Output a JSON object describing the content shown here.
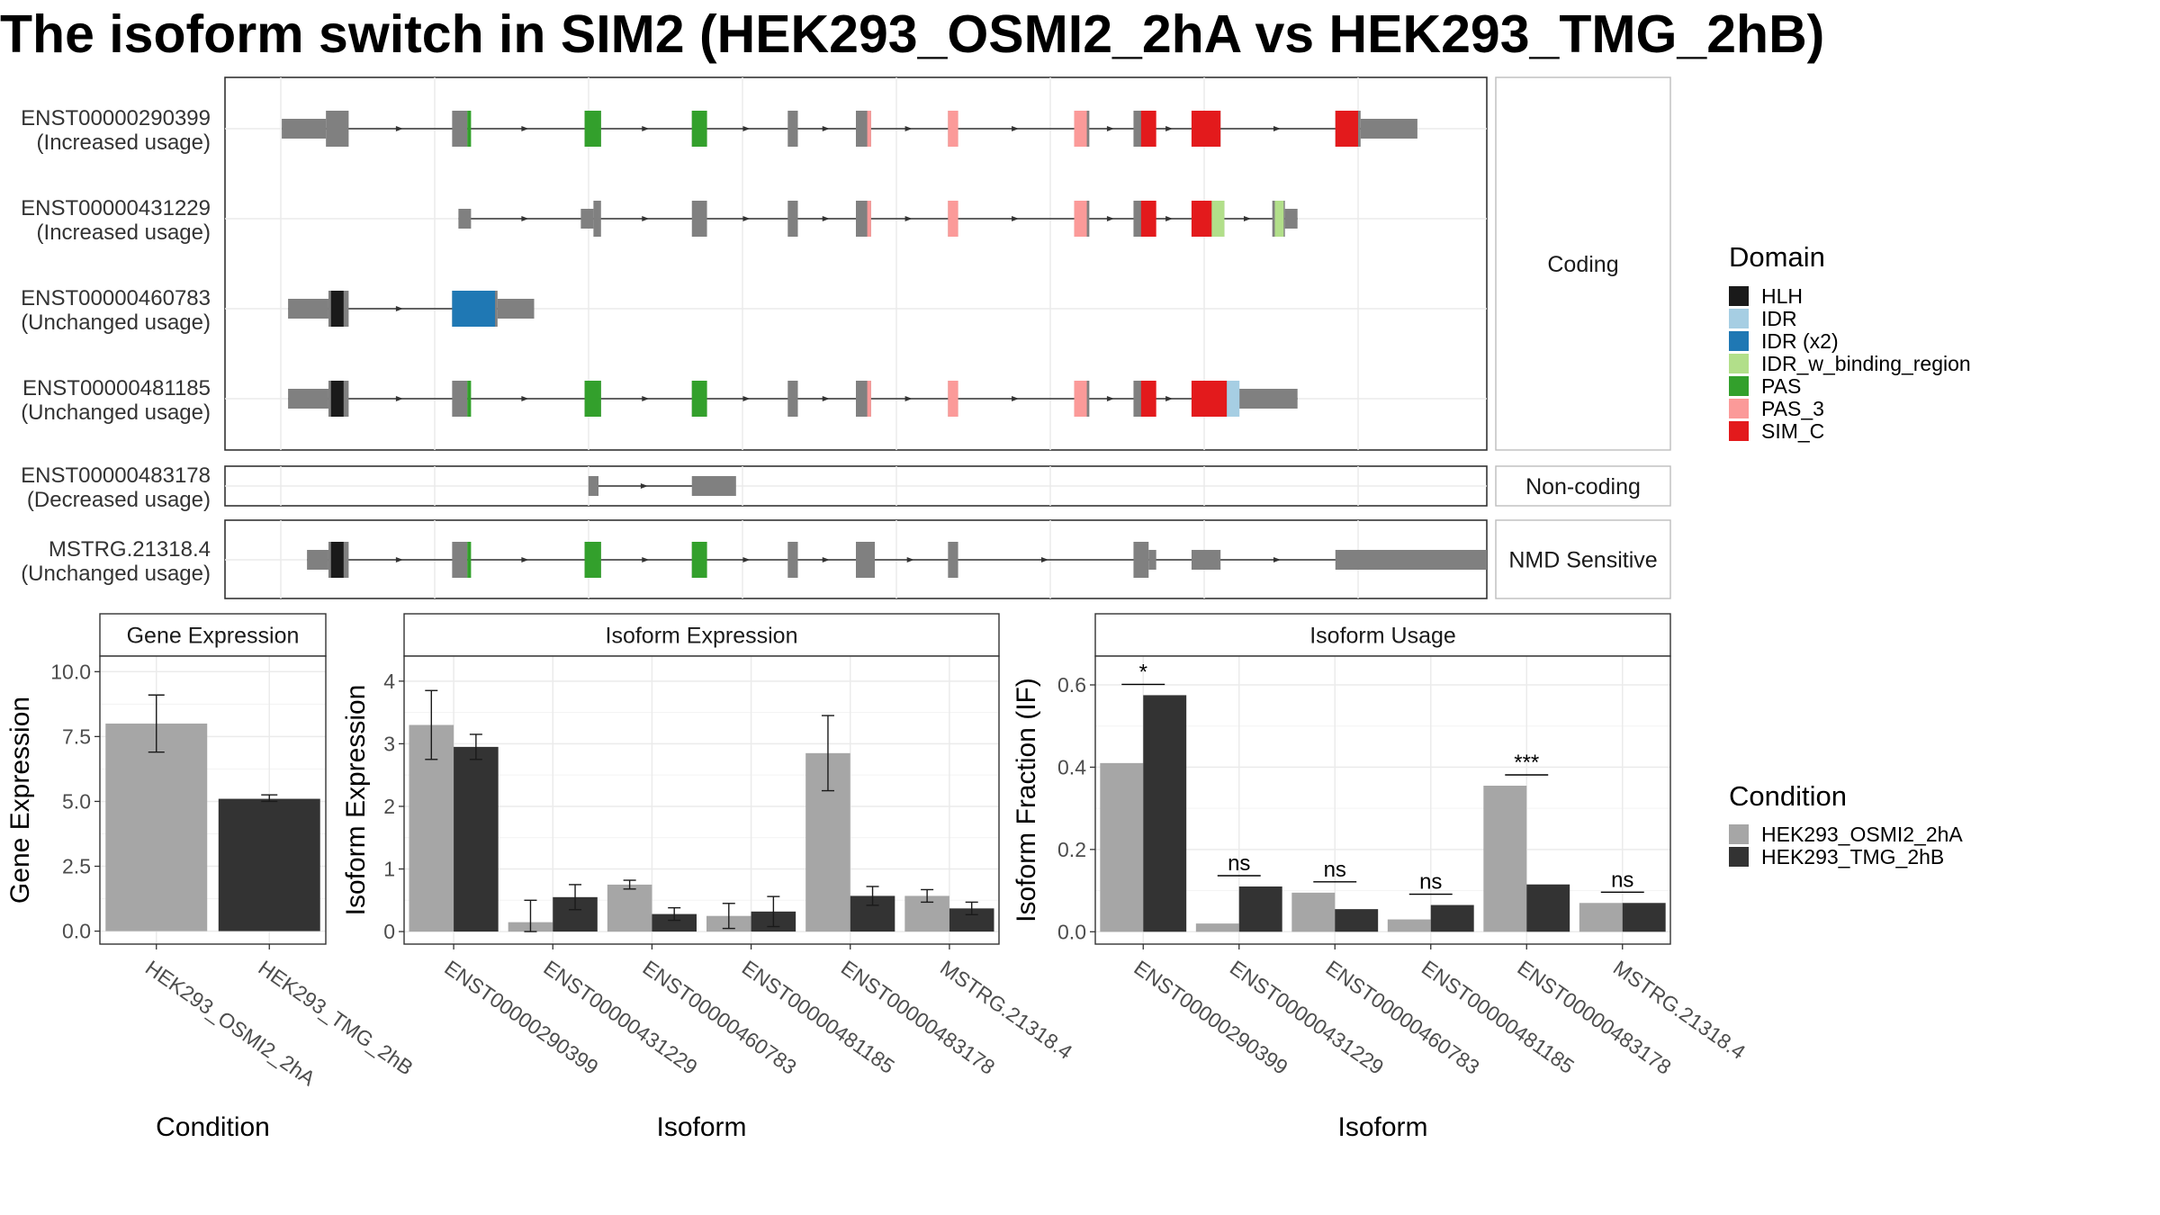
{
  "title": "The isoform switch in SIM2 (HEK293_OSMI2_2hA vs HEK293_TMG_2hB)",
  "colors": {
    "intron": "#333333",
    "exon": "#808080",
    "cond_a": "#a6a6a6",
    "cond_b": "#333333",
    "grid": "#ebebeb",
    "panel_border": "#333333",
    "strip_bg": "#ffffff"
  },
  "domains": [
    {
      "name": "HLH",
      "color": "#1a1a1a"
    },
    {
      "name": "IDR",
      "color": "#a6cee3"
    },
    {
      "name": "IDR (x2)",
      "color": "#1f78b4"
    },
    {
      "name": "IDR_w_binding_region",
      "color": "#b2df8a"
    },
    {
      "name": "PAS",
      "color": "#33a02c"
    },
    {
      "name": "PAS_3",
      "color": "#fb9a99"
    },
    {
      "name": "SIM_C",
      "color": "#e31a1c"
    }
  ],
  "legend": {
    "domain_title": "Domain",
    "condition_title": "Condition",
    "conditions": [
      "HEK293_OSMI2_2hA",
      "HEK293_TMG_2hB"
    ]
  },
  "structure": {
    "coord_range": [
      0,
      100
    ],
    "groups": [
      {
        "label": "Coding",
        "rows": [
          0,
          1,
          2,
          3
        ]
      },
      {
        "label": "Non-coding",
        "rows": [
          4
        ]
      },
      {
        "label": "NMD Sensitive",
        "rows": [
          5
        ]
      }
    ],
    "isoforms": [
      {
        "id": "ENST00000290399",
        "usage": "(Increased usage)",
        "span": [
          4.5,
          90.5
        ],
        "exons": [
          [
            4.5,
            8,
            "utr"
          ],
          [
            8,
            9.8,
            "cds"
          ],
          [
            18,
            19.2,
            "cds"
          ],
          [
            28.5,
            29.8,
            "cds"
          ],
          [
            37,
            38.2,
            "cds"
          ],
          [
            44.6,
            45.4,
            "cds"
          ],
          [
            50,
            51.2,
            "cds"
          ],
          [
            57.3,
            58.1,
            "cds"
          ],
          [
            67.3,
            68.5,
            "cds"
          ],
          [
            72,
            73.2,
            "cds"
          ],
          [
            76.6,
            78.9,
            "cds"
          ],
          [
            88,
            90,
            "cds"
          ],
          [
            90,
            94.5,
            "utr"
          ]
        ],
        "domains": [
          [
            19.2,
            19.5,
            "PAS"
          ],
          [
            28.5,
            29.8,
            "PAS"
          ],
          [
            37,
            38.2,
            "PAS"
          ],
          [
            50.9,
            51.2,
            "PAS_3"
          ],
          [
            57.3,
            58.1,
            "PAS_3"
          ],
          [
            67.3,
            68.3,
            "PAS_3"
          ],
          [
            72.6,
            73.8,
            "SIM_C"
          ],
          [
            76.6,
            78.9,
            "SIM_C"
          ],
          [
            88,
            89.8,
            "SIM_C"
          ]
        ]
      },
      {
        "id": "ENST00000431229",
        "usage": "(Increased usage)",
        "span": [
          18.5,
          85
        ],
        "exons": [
          [
            18.5,
            19.5,
            "utr"
          ],
          [
            28.2,
            29.2,
            "utr"
          ],
          [
            29.2,
            29.8,
            "cds"
          ],
          [
            37,
            38.2,
            "cds"
          ],
          [
            44.6,
            45.4,
            "cds"
          ],
          [
            50,
            51.2,
            "cds"
          ],
          [
            57.3,
            58.1,
            "cds"
          ],
          [
            67.3,
            68.5,
            "cds"
          ],
          [
            72,
            73.2,
            "cds"
          ],
          [
            76.6,
            78.2,
            "cds"
          ],
          [
            78.2,
            79.2,
            "cds"
          ],
          [
            83,
            84,
            "cds"
          ],
          [
            84,
            85,
            "utr"
          ]
        ],
        "domains": [
          [
            50.9,
            51.2,
            "PAS_3"
          ],
          [
            57.3,
            58.1,
            "PAS_3"
          ],
          [
            67.3,
            68.3,
            "PAS_3"
          ],
          [
            72.6,
            73.8,
            "SIM_C"
          ],
          [
            76.6,
            78.2,
            "SIM_C"
          ],
          [
            78.2,
            79.2,
            "IDR_w_binding_region"
          ],
          [
            83.2,
            83.9,
            "IDR_w_binding_region"
          ]
        ]
      },
      {
        "id": "ENST00000460783",
        "usage": "(Unchanged usage)",
        "span": [
          5,
          24.5
        ],
        "exons": [
          [
            5,
            8.2,
            "utr"
          ],
          [
            8.2,
            9.8,
            "cds"
          ],
          [
            18,
            21.6,
            "cds"
          ],
          [
            21.6,
            24.5,
            "utr"
          ]
        ],
        "domains": [
          [
            8.4,
            9.4,
            "HLH"
          ],
          [
            18,
            21.4,
            "IDR (x2)"
          ]
        ]
      },
      {
        "id": "ENST00000481185",
        "usage": "(Unchanged usage)",
        "span": [
          5,
          85
        ],
        "exons": [
          [
            5,
            8.2,
            "utr"
          ],
          [
            8.2,
            9.8,
            "cds"
          ],
          [
            18,
            19.2,
            "cds"
          ],
          [
            28.5,
            29.8,
            "cds"
          ],
          [
            37,
            38.2,
            "cds"
          ],
          [
            44.6,
            45.4,
            "cds"
          ],
          [
            50,
            51.2,
            "cds"
          ],
          [
            57.3,
            58.1,
            "cds"
          ],
          [
            67.3,
            68.5,
            "cds"
          ],
          [
            72,
            73.2,
            "cds"
          ],
          [
            76.6,
            80.2,
            "cds"
          ],
          [
            80.2,
            85,
            "utr"
          ]
        ],
        "domains": [
          [
            8.4,
            9.4,
            "HLH"
          ],
          [
            19.2,
            19.5,
            "PAS"
          ],
          [
            28.5,
            29.8,
            "PAS"
          ],
          [
            37,
            38.2,
            "PAS"
          ],
          [
            50.9,
            51.2,
            "PAS_3"
          ],
          [
            57.3,
            58.1,
            "PAS_3"
          ],
          [
            67.3,
            68.3,
            "PAS_3"
          ],
          [
            72.6,
            73.8,
            "SIM_C"
          ],
          [
            76.6,
            79.4,
            "SIM_C"
          ],
          [
            79.4,
            80.4,
            "IDR"
          ]
        ]
      },
      {
        "id": "ENST00000483178",
        "usage": "(Decreased usage)",
        "span": [
          29,
          40
        ],
        "exons": [
          [
            28.8,
            29.6,
            "utr"
          ],
          [
            37,
            40.5,
            "utr"
          ]
        ],
        "domains": []
      },
      {
        "id": "MSTRG.21318.4",
        "usage": "(Unchanged usage)",
        "span": [
          6.5,
          100
        ],
        "exons": [
          [
            6.5,
            8.2,
            "utr"
          ],
          [
            8.2,
            9.8,
            "cds"
          ],
          [
            18,
            19.2,
            "cds"
          ],
          [
            28.5,
            29.8,
            "cds"
          ],
          [
            37,
            38.2,
            "cds"
          ],
          [
            44.6,
            45.4,
            "cds"
          ],
          [
            50,
            51.5,
            "cds"
          ],
          [
            57.3,
            58.1,
            "cds"
          ],
          [
            72,
            73.2,
            "cds"
          ],
          [
            73.2,
            73.8,
            "utr"
          ],
          [
            76.6,
            78.9,
            "utr"
          ],
          [
            88,
            100,
            "utr"
          ]
        ],
        "domains": [
          [
            8.4,
            9.4,
            "HLH"
          ],
          [
            19.2,
            19.5,
            "PAS"
          ],
          [
            28.5,
            29.8,
            "PAS"
          ],
          [
            37,
            38.2,
            "PAS"
          ]
        ]
      }
    ]
  },
  "chart_data": [
    {
      "type": "bar",
      "title": "Gene Expression",
      "xlabel": "Condition",
      "ylabel": "Gene Expression",
      "ylim": [
        -0.5,
        10.6
      ],
      "yticks": [
        0.0,
        2.5,
        5.0,
        7.5,
        10.0
      ],
      "ytick_labels": [
        "0.0",
        "2.5",
        "5.0",
        "7.5",
        "10.0"
      ],
      "categories": [
        "HEK293_OSMI2_2hA",
        "HEK293_TMG_2hB"
      ],
      "values": [
        8.0,
        5.1
      ],
      "errors": [
        [
          6.9,
          9.1
        ],
        [
          5.0,
          5.25
        ]
      ]
    },
    {
      "type": "bar",
      "title": "Isoform Expression",
      "xlabel": "Isoform",
      "ylabel": "Isoform Expression",
      "ylim": [
        -0.2,
        4.4
      ],
      "yticks": [
        0,
        1,
        2,
        3,
        4
      ],
      "ytick_labels": [
        "0",
        "1",
        "2",
        "3",
        "4"
      ],
      "categories": [
        "ENST00000290399",
        "ENST00000431229",
        "ENST00000460783",
        "ENST00000481185",
        "ENST00000483178",
        "MSTRG.21318.4"
      ],
      "series": [
        {
          "name": "HEK293_OSMI2_2hA",
          "values": [
            3.3,
            0.15,
            0.75,
            0.25,
            2.85,
            0.57
          ],
          "errors": [
            [
              2.75,
              3.85
            ],
            [
              0.0,
              0.5
            ],
            [
              0.68,
              0.82
            ],
            [
              0.05,
              0.45
            ],
            [
              2.25,
              3.45
            ],
            [
              0.47,
              0.67
            ]
          ]
        },
        {
          "name": "HEK293_TMG_2hB",
          "values": [
            2.95,
            0.55,
            0.28,
            0.32,
            0.57,
            0.37
          ],
          "errors": [
            [
              2.75,
              3.15
            ],
            [
              0.35,
              0.75
            ],
            [
              0.18,
              0.38
            ],
            [
              0.08,
              0.56
            ],
            [
              0.42,
              0.72
            ],
            [
              0.27,
              0.47
            ]
          ]
        }
      ]
    },
    {
      "type": "bar",
      "title": "Isoform Usage",
      "xlabel": "Isoform",
      "ylabel": "Isoform Fraction (IF)",
      "ylim": [
        -0.03,
        0.67
      ],
      "yticks": [
        0.0,
        0.2,
        0.4,
        0.6
      ],
      "ytick_labels": [
        "0.0",
        "0.2",
        "0.4",
        "0.6"
      ],
      "categories": [
        "ENST00000290399",
        "ENST00000431229",
        "ENST00000460783",
        "ENST00000481185",
        "ENST00000483178",
        "MSTRG.21318.4"
      ],
      "series": [
        {
          "name": "HEK293_OSMI2_2hA",
          "values": [
            0.41,
            0.02,
            0.095,
            0.03,
            0.355,
            0.07
          ]
        },
        {
          "name": "HEK293_TMG_2hB",
          "values": [
            0.575,
            0.11,
            0.055,
            0.065,
            0.115,
            0.07
          ]
        }
      ],
      "significance": [
        "*",
        "ns",
        "ns",
        "ns",
        "***",
        "ns"
      ]
    }
  ]
}
